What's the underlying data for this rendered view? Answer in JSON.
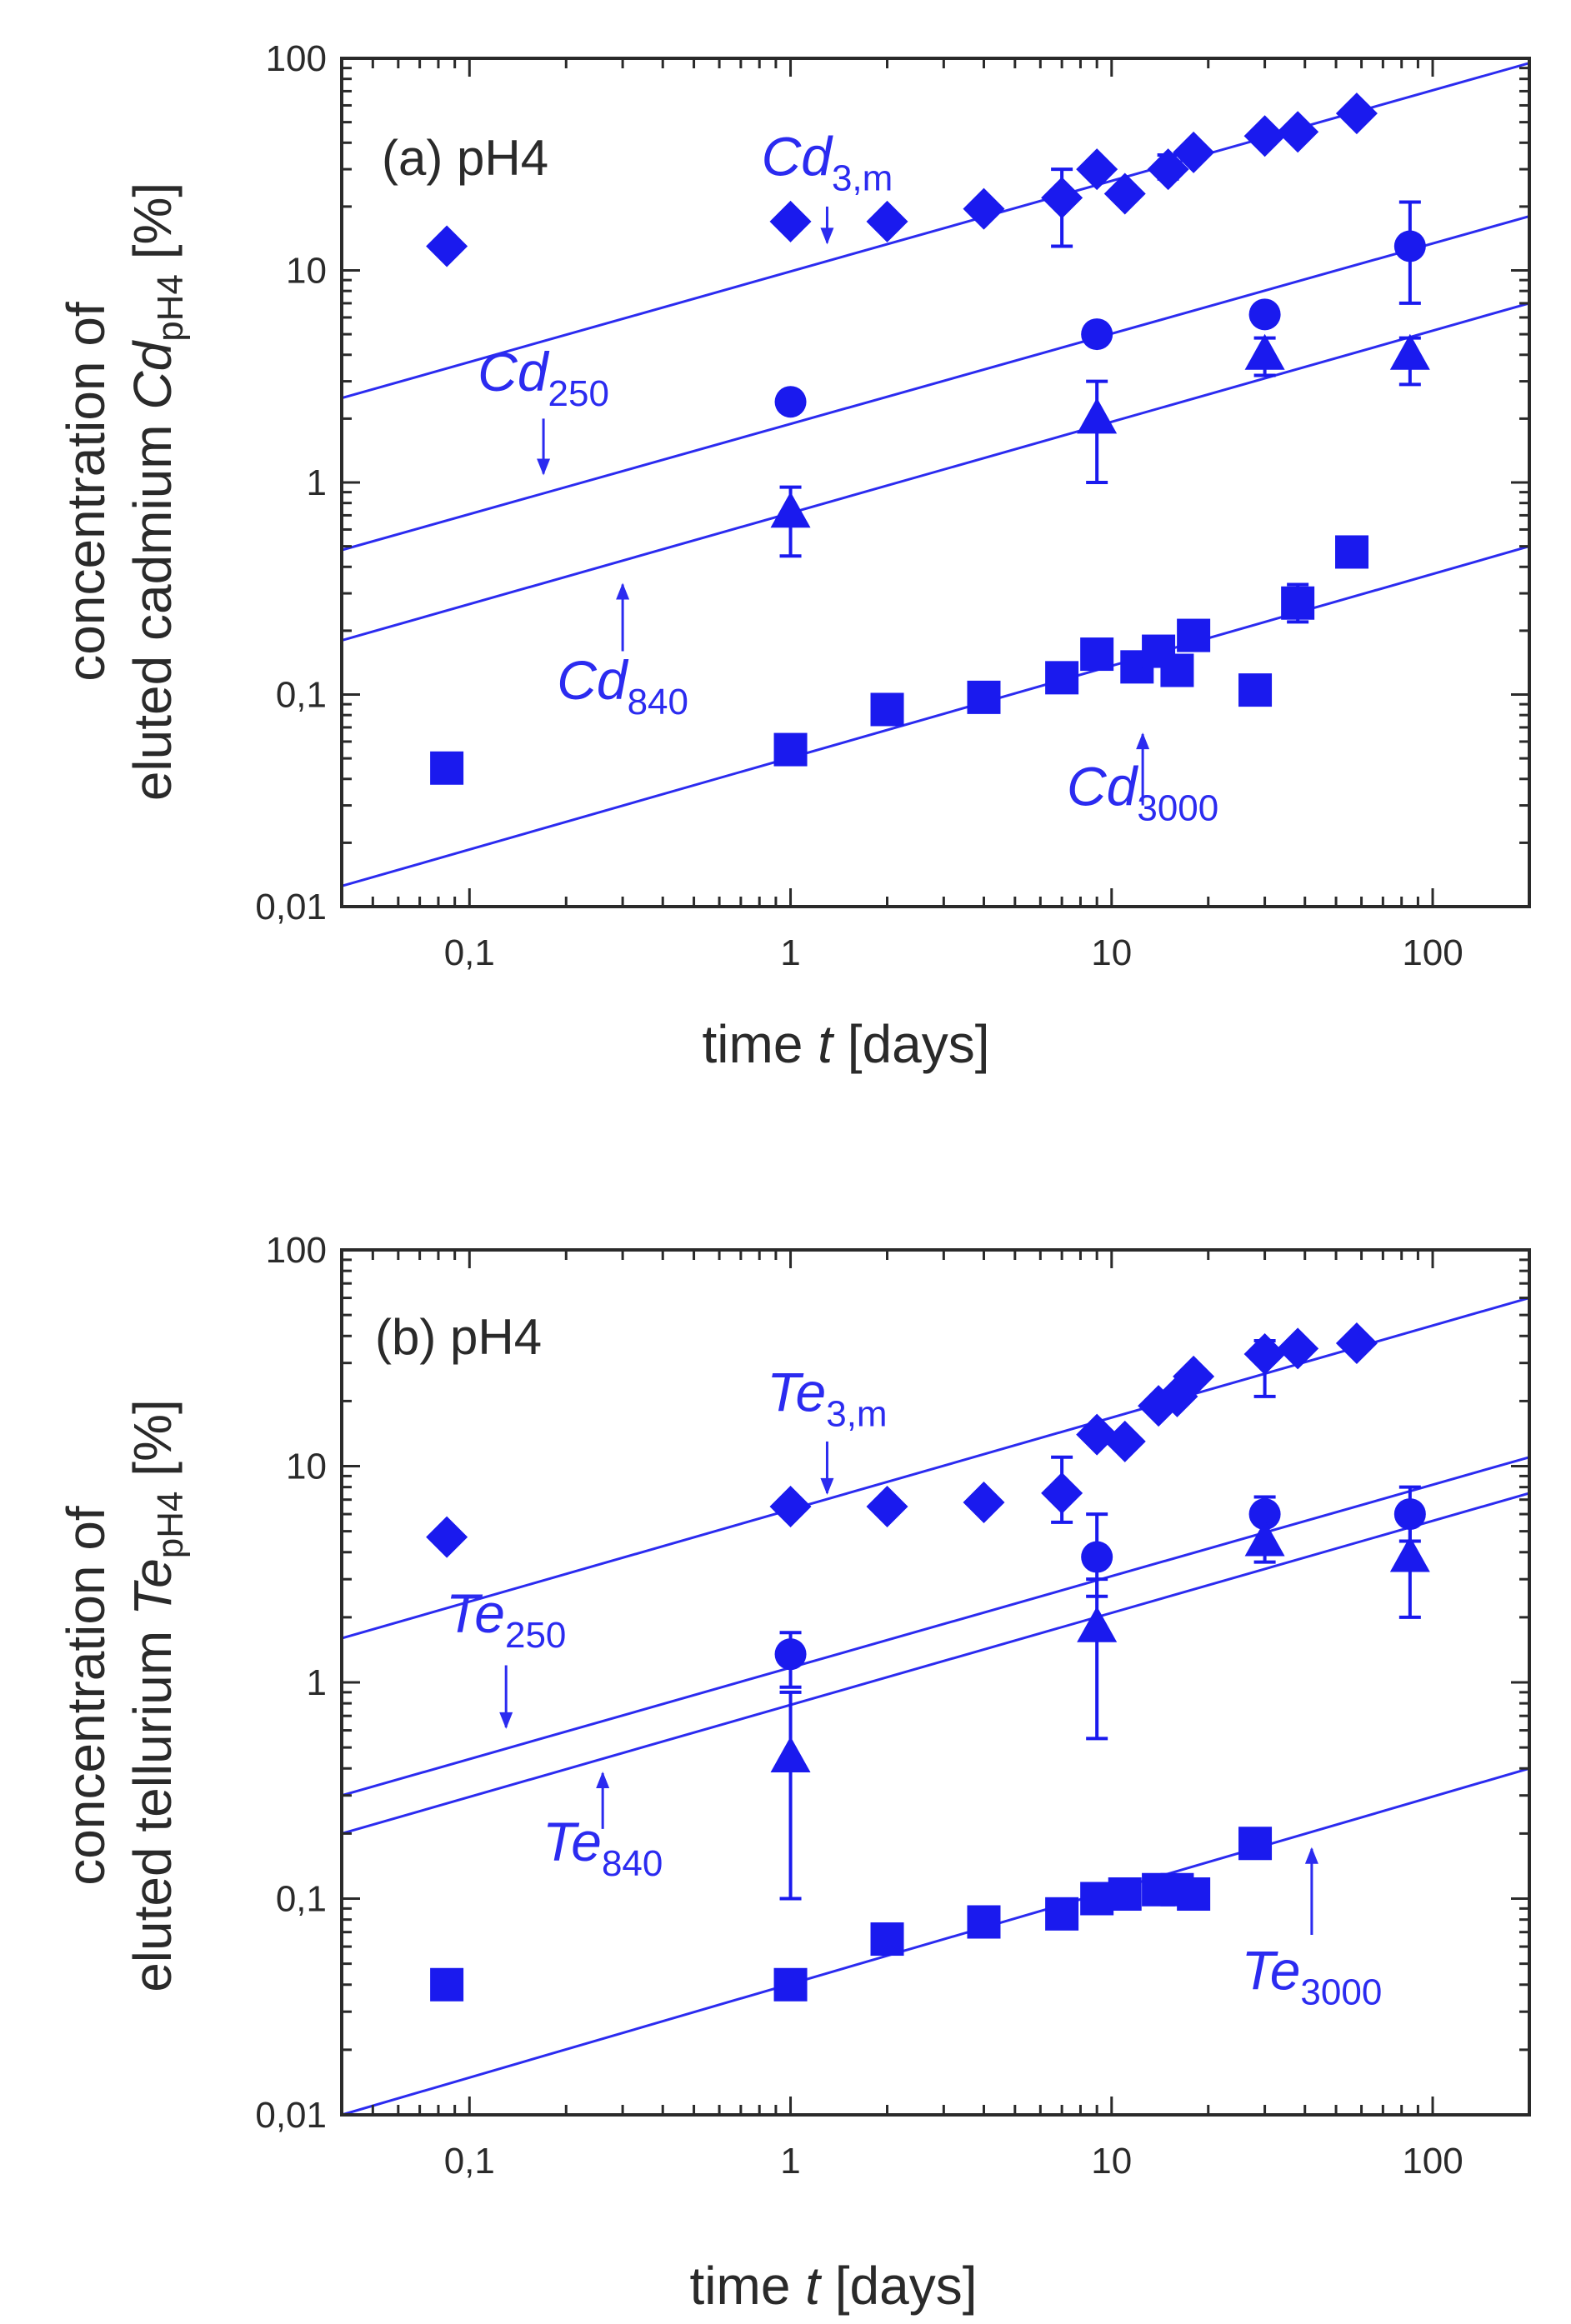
{
  "chart_data": [
    {
      "type": "scatter",
      "panel_label": "(a) pH4",
      "xlabel": {
        "pre": "time ",
        "var": "t",
        "post": " [days]"
      },
      "ylabel": {
        "line1": "concentration of",
        "line2_pre": "eluted cadmium ",
        "line2_var": "Cd",
        "line2_sub": "pH4",
        "line2_post": " [%]"
      },
      "x_scale": "log",
      "y_scale": "log",
      "xlim": [
        0.04,
        200
      ],
      "ylim": [
        0.01,
        100
      ],
      "x_ticks": [
        0.1,
        1,
        10,
        100
      ],
      "x_tick_labels": [
        "0,1",
        "1",
        "10",
        "100"
      ],
      "y_ticks": [
        0.01,
        0.1,
        1,
        10,
        100
      ],
      "y_tick_labels": [
        "0,01",
        "0,1",
        "1",
        "10",
        "100"
      ],
      "colors": {
        "marker": "#1a1aee",
        "line": "#2b2bf0",
        "text": "#2b2bf0",
        "axis": "#2a2a2a"
      },
      "series": [
        {
          "name": "Cd3,m",
          "label_main": "Cd",
          "label_sub": "3,m",
          "marker": "diamond",
          "x": [
            0.085,
            1,
            2,
            4,
            7,
            9,
            11,
            15,
            18,
            30,
            38,
            58
          ],
          "y": [
            13,
            17,
            17,
            19.5,
            22,
            30,
            23,
            30,
            36,
            43,
            45,
            55
          ],
          "err_low": [
            null,
            null,
            null,
            null,
            13,
            null,
            null,
            27,
            null,
            null,
            null,
            null
          ],
          "err_high": [
            null,
            null,
            null,
            null,
            30,
            null,
            null,
            35,
            null,
            null,
            null,
            null
          ],
          "fit": {
            "x": [
              0.04,
              200
            ],
            "y": [
              2.5,
              95
            ]
          },
          "label_pos": {
            "x": 1.3,
            "y": 28
          },
          "arrow": {
            "x": 1.3,
            "from_y": 20,
            "to_y": 13.5
          }
        },
        {
          "name": "Cd250",
          "label_main": "Cd",
          "label_sub": "250",
          "marker": "circle",
          "x": [
            1,
            9,
            30,
            85
          ],
          "y": [
            2.4,
            5,
            6.2,
            13
          ],
          "err_low": [
            null,
            null,
            null,
            7
          ],
          "err_high": [
            null,
            null,
            null,
            21
          ],
          "fit": {
            "x": [
              0.04,
              200
            ],
            "y": [
              0.48,
              18
            ]
          },
          "label_pos": {
            "x": 0.17,
            "y": 2.7
          },
          "arrow": {
            "x": 0.17,
            "from_y": 2.0,
            "to_y": 1.1
          }
        },
        {
          "name": "Cd840",
          "label_main": "Cd",
          "label_sub": "840",
          "marker": "triangle",
          "x": [
            1,
            9,
            30,
            85
          ],
          "y": [
            0.72,
            2.0,
            4.0,
            4.0
          ],
          "err_low": [
            0.45,
            1.0,
            3.2,
            2.9
          ],
          "err_high": [
            0.95,
            3.0,
            4.8,
            4.8
          ],
          "fit": {
            "x": [
              0.04,
              200
            ],
            "y": [
              0.18,
              7
            ]
          },
          "label_pos": {
            "x": 0.3,
            "y": 0.095
          },
          "arrow": {
            "x": 0.3,
            "from_y": 0.16,
            "to_y": 0.33
          }
        },
        {
          "name": "Cd3000",
          "label_main": "Cd",
          "label_sub": "3000",
          "marker": "square",
          "x": [
            0.085,
            1,
            2,
            4,
            7,
            9,
            12,
            14,
            16,
            18,
            28,
            38,
            56
          ],
          "y": [
            0.045,
            0.055,
            0.085,
            0.097,
            0.12,
            0.155,
            0.135,
            0.16,
            0.13,
            0.19,
            0.105,
            0.27,
            0.47
          ],
          "err_low": [
            null,
            null,
            null,
            null,
            null,
            null,
            0.115,
            null,
            null,
            null,
            0.09,
            0.22,
            null
          ],
          "err_high": [
            null,
            null,
            null,
            null,
            null,
            null,
            0.155,
            null,
            null,
            null,
            0.12,
            0.33,
            null
          ],
          "fit": {
            "x": [
              0.04,
              200
            ],
            "y": [
              0.0125,
              0.5
            ]
          },
          "label_pos": {
            "x": 12.5,
            "y": 0.03
          },
          "arrow": {
            "x": 12.5,
            "from_y": 0.03,
            "to_y": 0.065
          }
        }
      ]
    },
    {
      "type": "scatter",
      "panel_label": "(b) pH4",
      "xlabel": {
        "pre": "time ",
        "var": "t",
        "post": " [days]"
      },
      "ylabel": {
        "line1": "concentration of",
        "line2_pre": "eluted tellurium ",
        "line2_var": "Te",
        "line2_sub": "pH4",
        "line2_post": " [%]"
      },
      "x_scale": "log",
      "y_scale": "log",
      "xlim": [
        0.04,
        200
      ],
      "ylim": [
        0.01,
        100
      ],
      "x_ticks": [
        0.1,
        1,
        10,
        100
      ],
      "x_tick_labels": [
        "0,1",
        "1",
        "10",
        "100"
      ],
      "y_ticks": [
        0.01,
        0.1,
        1,
        10,
        100
      ],
      "y_tick_labels": [
        "0,01",
        "0,1",
        "1",
        "10",
        "100"
      ],
      "colors": {
        "marker": "#1a1aee",
        "line": "#2b2bf0",
        "text": "#2b2bf0",
        "axis": "#2a2a2a"
      },
      "series": [
        {
          "name": "Te3,m",
          "label_main": "Te",
          "label_sub": "3,m",
          "marker": "diamond",
          "x": [
            0.085,
            1,
            2,
            4,
            7,
            9,
            11,
            14,
            16,
            18,
            30,
            38,
            58
          ],
          "y": [
            4.7,
            6.5,
            6.5,
            6.8,
            7.5,
            14,
            13,
            19,
            21,
            26,
            33,
            35,
            37
          ],
          "err_low": [
            null,
            null,
            null,
            null,
            5.5,
            null,
            null,
            null,
            null,
            null,
            21,
            null,
            null
          ],
          "err_high": [
            null,
            null,
            null,
            null,
            11,
            null,
            null,
            null,
            null,
            null,
            38,
            null,
            null
          ],
          "fit": {
            "x": [
              0.04,
              200
            ],
            "y": [
              1.6,
              60
            ]
          },
          "label_pos": {
            "x": 1.3,
            "y": 18
          },
          "arrow": {
            "x": 1.3,
            "from_y": 13,
            "to_y": 7.5
          }
        },
        {
          "name": "Te250",
          "label_main": "Te",
          "label_sub": "250",
          "marker": "circle",
          "x": [
            1,
            9,
            30,
            85
          ],
          "y": [
            1.35,
            3.8,
            6.0,
            6.0
          ],
          "err_low": [
            0.95,
            2.5,
            4.5,
            4.5
          ],
          "err_high": [
            1.7,
            6.0,
            7.2,
            8.0
          ],
          "fit": {
            "x": [
              0.04,
              200
            ],
            "y": [
              0.3,
              11
            ]
          },
          "label_pos": {
            "x": 0.13,
            "y": 1.7
          },
          "arrow": {
            "x": 0.13,
            "from_y": 1.2,
            "to_y": 0.62
          }
        },
        {
          "name": "Te840",
          "label_main": "Te",
          "label_sub": "840",
          "marker": "triangle",
          "x": [
            1,
            9,
            30,
            85
          ],
          "y": [
            0.45,
            1.8,
            4.5,
            3.8
          ],
          "err_low": [
            0.1,
            0.55,
            3.6,
            2.0
          ],
          "err_high": [
            0.9,
            3.0,
            5.5,
            6.5
          ],
          "fit": {
            "x": [
              0.04,
              200
            ],
            "y": [
              0.2,
              7.5
            ]
          },
          "label_pos": {
            "x": 0.26,
            "y": 0.15
          },
          "arrow": {
            "x": 0.26,
            "from_y": 0.21,
            "to_y": 0.38
          }
        },
        {
          "name": "Te3000",
          "label_main": "Te",
          "label_sub": "3000",
          "marker": "square",
          "x": [
            0.085,
            1,
            2,
            4,
            7,
            9,
            11,
            14,
            16,
            18,
            28
          ],
          "y": [
            0.04,
            0.04,
            0.065,
            0.078,
            0.085,
            0.1,
            0.105,
            0.11,
            0.11,
            0.105,
            0.18
          ],
          "err_low": [
            null,
            null,
            null,
            null,
            null,
            null,
            null,
            null,
            0.095,
            null,
            null
          ],
          "err_high": [
            null,
            null,
            null,
            null,
            null,
            null,
            null,
            null,
            0.125,
            null,
            null
          ],
          "fit": {
            "x": [
              0.04,
              200
            ],
            "y": [
              0.01,
              0.4
            ]
          },
          "label_pos": {
            "x": 42,
            "y": 0.038
          },
          "arrow": {
            "x": 42,
            "from_y": 0.068,
            "to_y": 0.17
          }
        }
      ]
    }
  ]
}
